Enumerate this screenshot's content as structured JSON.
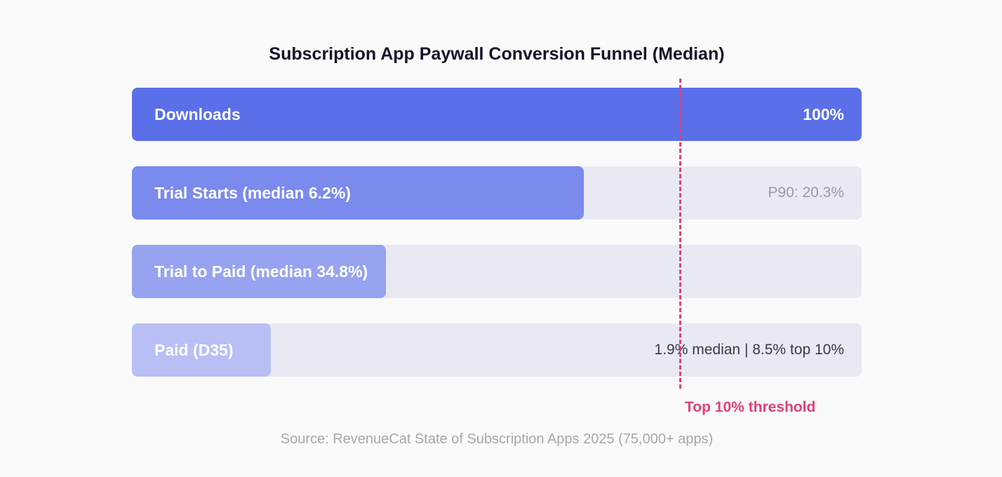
{
  "chart_data": {
    "type": "bar",
    "orientation": "horizontal",
    "title": "Subscription App Paywall Conversion Funnel (Median)",
    "stages": [
      {
        "label": "Downloads",
        "value_text": "100%",
        "color": "#5b6fe8"
      },
      {
        "label": "Trial Starts (median 6.2%)",
        "value_text": "P90: 20.3%",
        "color": "#7a8aed"
      },
      {
        "label": "Trial to Paid (median 34.8%)",
        "value_text": "",
        "color": "#97a3f0"
      },
      {
        "label": "Paid (D35)",
        "value_text": "1.9% median  |  8.5% top 10%",
        "color": "#b8bff4"
      }
    ],
    "annotation": {
      "label": "Top 10% threshold",
      "color": "#e0407a"
    },
    "source": "Source: RevenueCat State of Subscription Apps 2025 (75,000+ apps)"
  },
  "colors": {
    "track": "#e9e9f4",
    "background": "#fafafa"
  }
}
